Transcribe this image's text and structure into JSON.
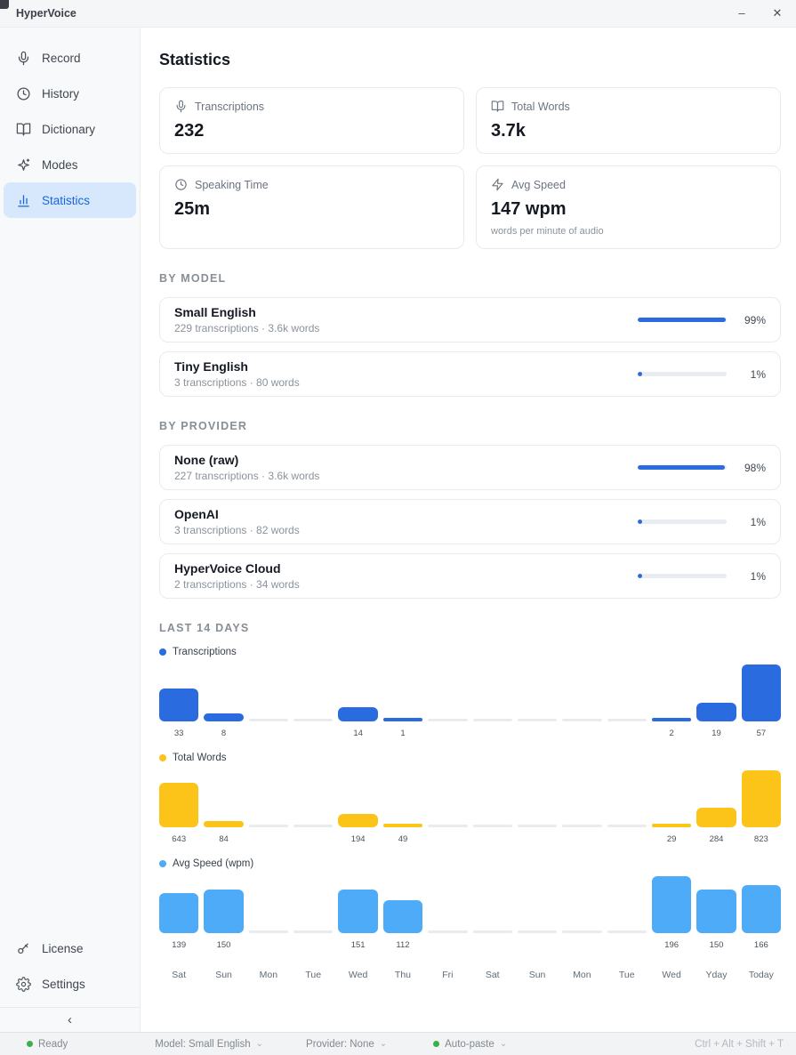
{
  "window": {
    "title": "HyperVoice",
    "minimize_label": "–",
    "close_label": "✕"
  },
  "icons": {
    "chevron_down": "⌄",
    "chevron_left": "‹"
  },
  "sidebar": {
    "items": [
      {
        "label": "Record",
        "icon": "microphone-icon"
      },
      {
        "label": "History",
        "icon": "clock-icon"
      },
      {
        "label": "Dictionary",
        "icon": "book-icon"
      },
      {
        "label": "Modes",
        "icon": "sparkles-icon"
      },
      {
        "label": "Statistics",
        "icon": "bar-chart-icon",
        "active": true
      }
    ],
    "footer_items": [
      {
        "label": "License",
        "icon": "key-icon"
      },
      {
        "label": "Settings",
        "icon": "gear-icon"
      }
    ]
  },
  "page": {
    "title": "Statistics"
  },
  "stats": {
    "cards": [
      {
        "label": "Transcriptions",
        "value": "232",
        "icon": "microphone-icon"
      },
      {
        "label": "Total Words",
        "value": "3.7k",
        "icon": "book-icon"
      },
      {
        "label": "Speaking Time",
        "value": "25m",
        "icon": "clock-icon"
      },
      {
        "label": "Avg Speed",
        "value": "147 wpm",
        "icon": "zap-icon",
        "subtext": "words per minute of audio"
      }
    ]
  },
  "by_model": {
    "heading": "BY MODEL",
    "rows": [
      {
        "name": "Small English",
        "detail": "229 transcriptions · 3.6k words",
        "percent": "99%",
        "fraction": 0.99
      },
      {
        "name": "Tiny English",
        "detail": "3 transcriptions · 80 words",
        "percent": "1%",
        "fraction": 0.01
      }
    ]
  },
  "by_provider": {
    "heading": "BY PROVIDER",
    "rows": [
      {
        "name": "None (raw)",
        "detail": "227 transcriptions · 3.6k words",
        "percent": "98%",
        "fraction": 0.98
      },
      {
        "name": "OpenAI",
        "detail": "3 transcriptions · 82 words",
        "percent": "1%",
        "fraction": 0.01
      },
      {
        "name": "HyperVoice Cloud",
        "detail": "2 transcriptions · 34 words",
        "percent": "1%",
        "fraction": 0.01
      }
    ]
  },
  "last_14_days": {
    "heading": "LAST 14 DAYS",
    "day_labels": [
      "Sat",
      "Sun",
      "Mon",
      "Tue",
      "Wed",
      "Thu",
      "Fri",
      "Sat",
      "Sun",
      "Mon",
      "Tue",
      "Wed",
      "Yday",
      "Today"
    ],
    "charts": [
      {
        "legend": "Transcriptions",
        "color": "#2b6be0",
        "type": "bar",
        "values": [
          33,
          8,
          0,
          0,
          14,
          1,
          0,
          0,
          0,
          0,
          0,
          2,
          19,
          57
        ]
      },
      {
        "legend": "Total Words",
        "color": "#fcc419",
        "type": "bar",
        "values": [
          643,
          84,
          0,
          0,
          194,
          49,
          0,
          0,
          0,
          0,
          0,
          29,
          284,
          823
        ]
      },
      {
        "legend": "Avg Speed (wpm)",
        "color": "#4dabf7",
        "type": "bar",
        "values": [
          139,
          150,
          0,
          0,
          151,
          112,
          0,
          0,
          0,
          0,
          0,
          196,
          150,
          166
        ]
      }
    ]
  },
  "statusbar": {
    "ready_label": "Ready",
    "model_label": "Model: Small English",
    "provider_label": "Provider: None",
    "autopaste_label": "Auto-paste",
    "shortcut": "Ctrl + Alt + Shift + T",
    "status_dot_color": "#37b24d"
  },
  "colors": {
    "accent_blue": "#2b6be0",
    "active_nav_bg": "#d7e7fc",
    "active_nav_text": "#1865dd",
    "progress_fill": "#2b6be0",
    "empty_bar": "#e9ecef"
  }
}
